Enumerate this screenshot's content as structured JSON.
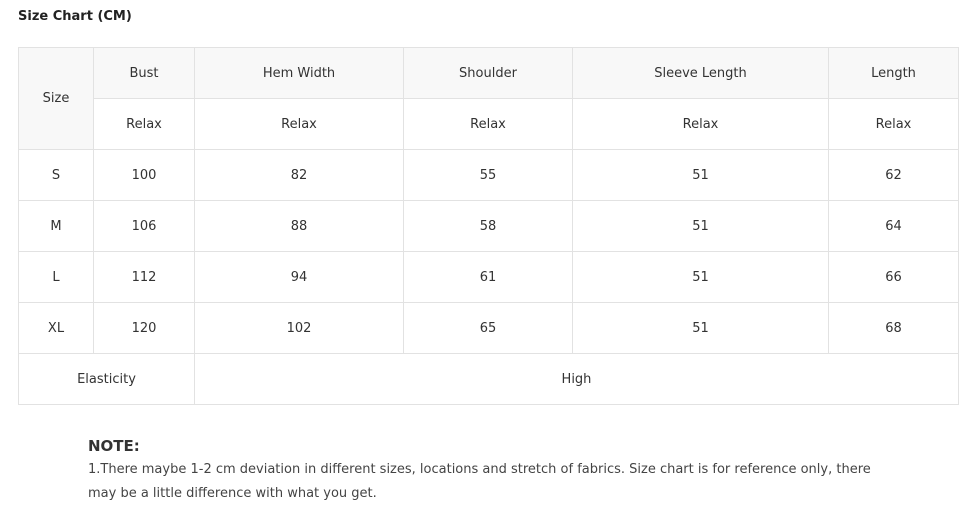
{
  "title": "Size Chart (CM)",
  "table": {
    "size_header": "Size",
    "headers": [
      "Bust",
      "Hem Width",
      "Shoulder",
      "Sleeve Length",
      "Length"
    ],
    "fit": [
      "Relax",
      "Relax",
      "Relax",
      "Relax",
      "Relax"
    ],
    "rows": [
      [
        "S",
        "100",
        "82",
        "55",
        "51",
        "62"
      ],
      [
        "M",
        "106",
        "88",
        "58",
        "51",
        "64"
      ],
      [
        "L",
        "112",
        "94",
        "61",
        "51",
        "66"
      ],
      [
        "XL",
        "120",
        "102",
        "65",
        "51",
        "68"
      ]
    ],
    "elasticity_label": "Elasticity",
    "elasticity_value": "High"
  },
  "note": {
    "title": "NOTE:",
    "text": "1.There maybe 1-2 cm deviation in different sizes, locations and stretch of fabrics. Size chart is for reference only, there may be a little difference with what you get."
  }
}
